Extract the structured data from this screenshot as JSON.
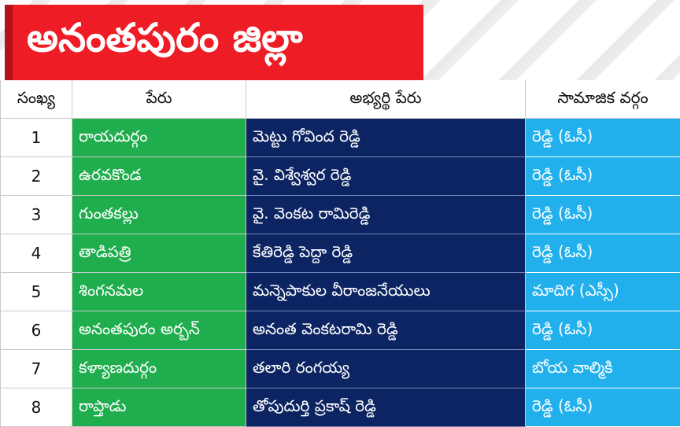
{
  "title": "అనంతపురం జిల్లా",
  "headers": [
    "సంఖ్య",
    "పేరు",
    "అభ్యర్థి పేరు",
    "సామాజిక వర్గం"
  ],
  "rows": [
    {
      "no": "1",
      "constituency": "రాయదుర్గం",
      "candidate": "మెట్టు గోవింద రెడ్డి",
      "caste": "రెడ్డి (ఓసీ)"
    },
    {
      "no": "2",
      "constituency": "ఉరవకొండ",
      "candidate": "వై. విశ్వేశ్వర రెడ్డి",
      "caste": "రెడ్డి (ఓసీ)"
    },
    {
      "no": "3",
      "constituency": "గుంతకల్లు",
      "candidate": "వై. వెంకట రామిరెడ్డి",
      "caste": "రెడ్డి (ఓసీ)"
    },
    {
      "no": "4",
      "constituency": "తాడిపత్రి",
      "candidate": "కేతిరెడ్డి పెద్దా రెడ్డి",
      "caste": "రెడ్డి (ఓసీ)"
    },
    {
      "no": "5",
      "constituency": "శింగనమల",
      "candidate": "మన్నెపాకుల వీరాంజనేయులు",
      "caste": "మాదిగ (ఎస్సీ)"
    },
    {
      "no": "6",
      "constituency": "అనంతపురం అర్బన్",
      "candidate": "అనంత వెంకటరామి రెడ్డి",
      "caste": "రెడ్డి (ఓసీ)"
    },
    {
      "no": "7",
      "constituency": "కళ్యాణదుర్గం",
      "candidate": "తలారి రంగయ్య",
      "caste": "బోయ వాల్మికి"
    },
    {
      "no": "8",
      "constituency": "రాప్తాడు",
      "candidate": "తోపుదుర్తి ప్రకాష్ రెడ్డి",
      "caste": "రెడ్డి (ఓసీ)"
    }
  ],
  "colors": {
    "title_bg": "#ee1c25",
    "constituency_bg": "#1fad4d",
    "candidate_bg": "#0c2461",
    "caste_bg": "#22b0ec"
  }
}
